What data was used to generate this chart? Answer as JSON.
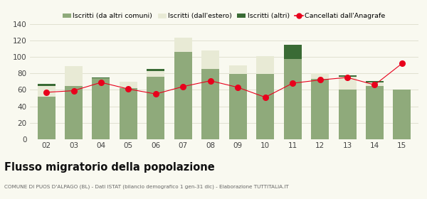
{
  "years": [
    "02",
    "03",
    "04",
    "05",
    "06",
    "07",
    "08",
    "09",
    "10",
    "11",
    "12",
    "13",
    "14",
    "15"
  ],
  "iscritti_comuni": [
    52,
    65,
    74,
    62,
    76,
    106,
    85,
    79,
    79,
    97,
    73,
    60,
    65,
    60
  ],
  "iscritti_estero": [
    13,
    24,
    0,
    8,
    7,
    17,
    23,
    11,
    22,
    0,
    7,
    16,
    4,
    0
  ],
  "iscritti_altri": [
    2,
    0,
    1,
    0,
    2,
    0,
    0,
    0,
    0,
    18,
    0,
    2,
    2,
    0
  ],
  "cancellati": [
    57,
    59,
    69,
    61,
    55,
    64,
    71,
    63,
    51,
    68,
    72,
    75,
    66,
    92
  ],
  "color_comuni": "#8faa7b",
  "color_estero": "#e8ead5",
  "color_altri": "#3a6b35",
  "color_cancellati": "#e8001c",
  "ylim": [
    0,
    140
  ],
  "yticks": [
    0,
    20,
    40,
    60,
    80,
    100,
    120,
    140
  ],
  "title": "Flusso migratorio della popolazione",
  "subtitle": "COMUNE DI PUOS D'ALPAGO (BL) - Dati ISTAT (bilancio demografico 1 gen-31 dic) - Elaborazione TUTTITALIA.IT",
  "legend_labels": [
    "Iscritti (da altri comuni)",
    "Iscritti (dall'estero)",
    "Iscritti (altri)",
    "Cancellati dall'Anagrafe"
  ],
  "bg_color": "#f9f9f0",
  "grid_color": "#ddddcc"
}
